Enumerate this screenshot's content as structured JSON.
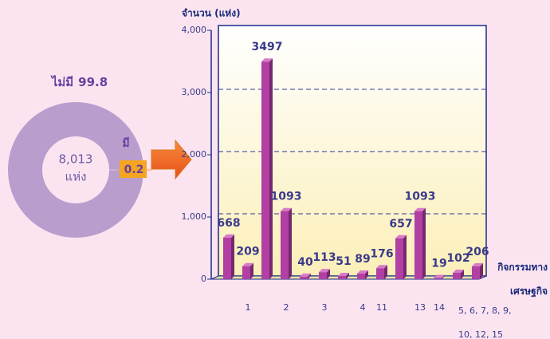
{
  "chart_data": [
    {
      "type": "donut",
      "categories": [
        "ไม่มี",
        "มี"
      ],
      "values": [
        99.8,
        0.2
      ],
      "colors": [
        "#b99dcd",
        "#f5a51f"
      ],
      "total_label": "8,013",
      "total_unit": "แห่ง"
    },
    {
      "type": "bar",
      "y_label": "จำนวน (แห่ง)",
      "x_label": "กิจกรรมทาง เศรษฐกิจ",
      "categories": [
        null,
        "1",
        null,
        "2",
        null,
        "3",
        null,
        "4",
        "11",
        null,
        "13",
        "14",
        null,
        "5, 6, 7, 8, 9, 10, 12, 15"
      ],
      "values": [
        668,
        209,
        3497,
        1093,
        40,
        113,
        51,
        89,
        176,
        657,
        1093,
        19,
        102,
        206
      ],
      "color": "#b23fa3",
      "ylim": [
        0,
        4000
      ],
      "yticks": [
        0,
        {
          "value": 1000,
          "label": "1,000"
        },
        {
          "value": 2000,
          "label": "2,000"
        },
        {
          "value": 3000,
          "label": "3,000"
        },
        {
          "value": 4000,
          "label": "4,000"
        }
      ],
      "grid": true
    }
  ]
}
